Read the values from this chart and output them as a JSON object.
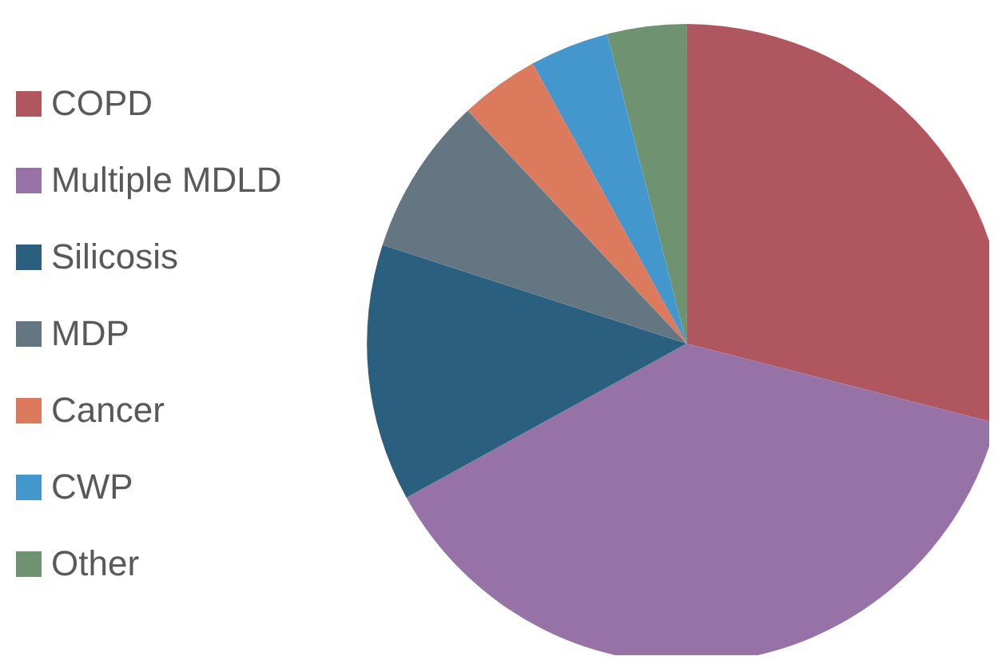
{
  "chart_data": {
    "type": "pie",
    "categories": [
      "COPD",
      "Multiple MDLD",
      "Silicosis",
      "MDP",
      "Cancer",
      "CWP",
      "Other"
    ],
    "values": [
      29,
      38,
      13,
      8,
      4,
      4,
      4
    ],
    "colors": [
      "#b0565e",
      "#9672a6",
      "#2b5f7f",
      "#637682",
      "#db7a5c",
      "#4497cc",
      "#6f9270"
    ],
    "legend": "left"
  }
}
